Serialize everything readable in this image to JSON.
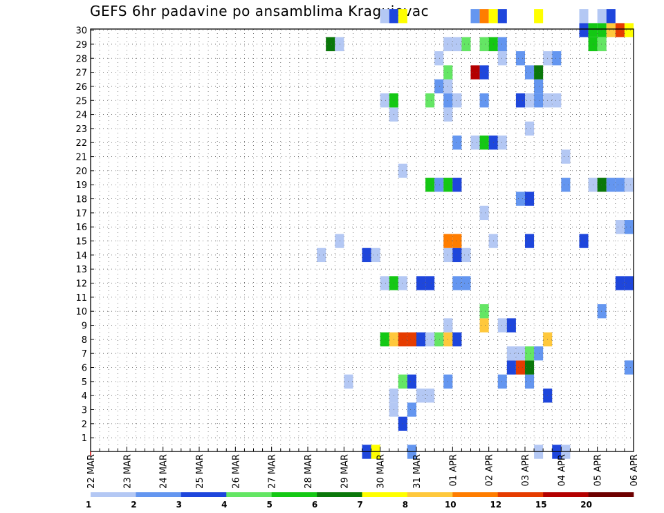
{
  "chart_data": {
    "type": "heatmap",
    "title": "GEFS 6hr padavine po ansamblima Kragujevac",
    "xlabel": "",
    "ylabel": "",
    "x_tick_labels": [
      "22 MAR",
      "23 MAR",
      "24 MAR",
      "25 MAR",
      "26 MAR",
      "27 MAR",
      "28 MAR",
      "29 MAR",
      "30 MAR",
      "31 MAR",
      "01 APR",
      "02 APR",
      "03 APR",
      "04 APR",
      "05 APR",
      "06 APR"
    ],
    "y_tick_labels": [
      "1",
      "2",
      "3",
      "4",
      "5",
      "6",
      "7",
      "8",
      "9",
      "10",
      "11",
      "12",
      "13",
      "14",
      "15",
      "16",
      "17",
      "18",
      "19",
      "20",
      "21",
      "22",
      "23",
      "24",
      "25",
      "26",
      "27",
      "28",
      "29",
      "30"
    ],
    "x_unit": "6hr steps from 22 MAR 00Z",
    "xlim": [
      0,
      60
    ],
    "ylim": [
      0,
      30
    ],
    "grid": true,
    "color_levels": [
      1,
      2,
      3,
      4,
      5,
      6,
      7,
      8,
      10,
      12,
      15,
      20
    ],
    "color_bins": [
      "#b4c8f4",
      "#6496f0",
      "#1e46dc",
      "#64e664",
      "#14c814",
      "#0a780a",
      "#ffff00",
      "#ffc83c",
      "#ff7d00",
      "#e63c00",
      "#b40000",
      "#6e0000"
    ],
    "cells": [
      {
        "y": 0,
        "x": 30,
        "c": 2
      },
      {
        "y": 0,
        "x": 31,
        "c": 6
      },
      {
        "y": 0,
        "x": 35,
        "c": 1
      },
      {
        "y": 0,
        "x": 49,
        "c": 0
      },
      {
        "y": 0,
        "x": 51,
        "c": 2
      },
      {
        "y": 0,
        "x": 52,
        "c": 0
      },
      {
        "y": 2,
        "x": 34,
        "c": 2
      },
      {
        "y": 3,
        "x": 33,
        "c": 0
      },
      {
        "y": 3,
        "x": 35,
        "c": 1
      },
      {
        "y": 4,
        "x": 33,
        "c": 0
      },
      {
        "y": 4,
        "x": 36,
        "c": 0
      },
      {
        "y": 4,
        "x": 37,
        "c": 0
      },
      {
        "y": 4,
        "x": 50,
        "c": 2
      },
      {
        "y": 5,
        "x": 28,
        "c": 0
      },
      {
        "y": 5,
        "x": 34,
        "c": 3
      },
      {
        "y": 5,
        "x": 35,
        "c": 2
      },
      {
        "y": 5,
        "x": 39,
        "c": 1
      },
      {
        "y": 5,
        "x": 45,
        "c": 1
      },
      {
        "y": 5,
        "x": 48,
        "c": 1
      },
      {
        "y": 6,
        "x": 46,
        "c": 2
      },
      {
        "y": 6,
        "x": 47,
        "c": 9
      },
      {
        "y": 6,
        "x": 48,
        "c": 5
      },
      {
        "y": 6,
        "x": 59,
        "c": 1
      },
      {
        "y": 7,
        "x": 46,
        "c": 0
      },
      {
        "y": 7,
        "x": 47,
        "c": 0
      },
      {
        "y": 7,
        "x": 48,
        "c": 3
      },
      {
        "y": 7,
        "x": 49,
        "c": 1
      },
      {
        "y": 8,
        "x": 32,
        "c": 4
      },
      {
        "y": 8,
        "x": 33,
        "c": 7
      },
      {
        "y": 8,
        "x": 34,
        "c": 9
      },
      {
        "y": 8,
        "x": 35,
        "c": 9
      },
      {
        "y": 8,
        "x": 36,
        "c": 2
      },
      {
        "y": 8,
        "x": 37,
        "c": 0
      },
      {
        "y": 8,
        "x": 38,
        "c": 3
      },
      {
        "y": 8,
        "x": 39,
        "c": 7
      },
      {
        "y": 8,
        "x": 40,
        "c": 2
      },
      {
        "y": 8,
        "x": 50,
        "c": 7
      },
      {
        "y": 9,
        "x": 39,
        "c": 0
      },
      {
        "y": 9,
        "x": 43,
        "c": 7
      },
      {
        "y": 9,
        "x": 45,
        "c": 0
      },
      {
        "y": 9,
        "x": 46,
        "c": 2
      },
      {
        "y": 10,
        "x": 43,
        "c": 3
      },
      {
        "y": 10,
        "x": 56,
        "c": 1
      },
      {
        "y": 12,
        "x": 32,
        "c": 0
      },
      {
        "y": 12,
        "x": 33,
        "c": 4
      },
      {
        "y": 12,
        "x": 34,
        "c": 0
      },
      {
        "y": 12,
        "x": 36,
        "c": 2
      },
      {
        "y": 12,
        "x": 37,
        "c": 2
      },
      {
        "y": 12,
        "x": 40,
        "c": 1
      },
      {
        "y": 12,
        "x": 41,
        "c": 1
      },
      {
        "y": 12,
        "x": 58,
        "c": 2
      },
      {
        "y": 12,
        "x": 59,
        "c": 2
      },
      {
        "y": 14,
        "x": 25,
        "c": 0
      },
      {
        "y": 14,
        "x": 30,
        "c": 2
      },
      {
        "y": 14,
        "x": 31,
        "c": 0
      },
      {
        "y": 14,
        "x": 39,
        "c": 0
      },
      {
        "y": 14,
        "x": 40,
        "c": 2
      },
      {
        "y": 14,
        "x": 41,
        "c": 0
      },
      {
        "y": 15,
        "x": 27,
        "c": 0
      },
      {
        "y": 15,
        "x": 39,
        "c": 8
      },
      {
        "y": 15,
        "x": 40,
        "c": 8
      },
      {
        "y": 15,
        "x": 44,
        "c": 0
      },
      {
        "y": 15,
        "x": 48,
        "c": 2
      },
      {
        "y": 15,
        "x": 54,
        "c": 2
      },
      {
        "y": 16,
        "x": 58,
        "c": 0
      },
      {
        "y": 16,
        "x": 59,
        "c": 1
      },
      {
        "y": 17,
        "x": 43,
        "c": 0
      },
      {
        "y": 18,
        "x": 47,
        "c": 1
      },
      {
        "y": 18,
        "x": 48,
        "c": 2
      },
      {
        "y": 19,
        "x": 37,
        "c": 4
      },
      {
        "y": 19,
        "x": 38,
        "c": 1
      },
      {
        "y": 19,
        "x": 39,
        "c": 4
      },
      {
        "y": 19,
        "x": 40,
        "c": 2
      },
      {
        "y": 19,
        "x": 52,
        "c": 1
      },
      {
        "y": 19,
        "x": 55,
        "c": 0
      },
      {
        "y": 19,
        "x": 56,
        "c": 5
      },
      {
        "y": 19,
        "x": 57,
        "c": 1
      },
      {
        "y": 19,
        "x": 58,
        "c": 1
      },
      {
        "y": 19,
        "x": 59,
        "c": 0
      },
      {
        "y": 20,
        "x": 34,
        "c": 0
      },
      {
        "y": 21,
        "x": 52,
        "c": 0
      },
      {
        "y": 22,
        "x": 40,
        "c": 1
      },
      {
        "y": 22,
        "x": 42,
        "c": 0
      },
      {
        "y": 22,
        "x": 43,
        "c": 4
      },
      {
        "y": 22,
        "x": 44,
        "c": 2
      },
      {
        "y": 22,
        "x": 45,
        "c": 0
      },
      {
        "y": 23,
        "x": 48,
        "c": 0
      },
      {
        "y": 24,
        "x": 33,
        "c": 0
      },
      {
        "y": 24,
        "x": 39,
        "c": 0
      },
      {
        "y": 25,
        "x": 32,
        "c": 0
      },
      {
        "y": 25,
        "x": 33,
        "c": 4
      },
      {
        "y": 25,
        "x": 37,
        "c": 3
      },
      {
        "y": 25,
        "x": 39,
        "c": 1
      },
      {
        "y": 25,
        "x": 40,
        "c": 0
      },
      {
        "y": 25,
        "x": 43,
        "c": 1
      },
      {
        "y": 25,
        "x": 47,
        "c": 2
      },
      {
        "y": 25,
        "x": 48,
        "c": 0
      },
      {
        "y": 25,
        "x": 49,
        "c": 1
      },
      {
        "y": 25,
        "x": 50,
        "c": 0
      },
      {
        "y": 25,
        "x": 51,
        "c": 0
      },
      {
        "y": 26,
        "x": 38,
        "c": 1
      },
      {
        "y": 26,
        "x": 39,
        "c": 0
      },
      {
        "y": 26,
        "x": 49,
        "c": 1
      },
      {
        "y": 27,
        "x": 39,
        "c": 3
      },
      {
        "y": 27,
        "x": 42,
        "c": 10
      },
      {
        "y": 27,
        "x": 43,
        "c": 2
      },
      {
        "y": 27,
        "x": 48,
        "c": 1
      },
      {
        "y": 27,
        "x": 49,
        "c": 5
      },
      {
        "y": 28,
        "x": 38,
        "c": 0
      },
      {
        "y": 28,
        "x": 45,
        "c": 0
      },
      {
        "y": 28,
        "x": 47,
        "c": 1
      },
      {
        "y": 28,
        "x": 50,
        "c": 0
      },
      {
        "y": 28,
        "x": 51,
        "c": 1
      },
      {
        "y": 29,
        "x": 26,
        "c": 5
      },
      {
        "y": 29,
        "x": 27,
        "c": 0
      },
      {
        "y": 29,
        "x": 39,
        "c": 0
      },
      {
        "y": 29,
        "x": 40,
        "c": 0
      },
      {
        "y": 29,
        "x": 41,
        "c": 3
      },
      {
        "y": 29,
        "x": 43,
        "c": 3
      },
      {
        "y": 29,
        "x": 44,
        "c": 4
      },
      {
        "y": 29,
        "x": 45,
        "c": 1
      },
      {
        "y": 29,
        "x": 55,
        "c": 4
      },
      {
        "y": 29,
        "x": 56,
        "c": 3
      },
      {
        "y": 29,
        "x": 60,
        "c": 2
      },
      {
        "y": 30,
        "x": 54,
        "c": 2
      },
      {
        "y": 30,
        "x": 55,
        "c": 4
      },
      {
        "y": 30,
        "x": 56,
        "c": 4
      },
      {
        "y": 30,
        "x": 57,
        "c": 7
      },
      {
        "y": 30,
        "x": 58,
        "c": 9
      },
      {
        "y": 30,
        "x": 59,
        "c": 6
      },
      {
        "y": 30,
        "x": 60,
        "c": 1
      },
      {
        "y": 31,
        "x": 32,
        "c": 0
      },
      {
        "y": 31,
        "x": 33,
        "c": 2
      },
      {
        "y": 31,
        "x": 34,
        "c": 6
      },
      {
        "y": 31,
        "x": 42,
        "c": 1
      },
      {
        "y": 31,
        "x": 43,
        "c": 8
      },
      {
        "y": 31,
        "x": 44,
        "c": 6
      },
      {
        "y": 31,
        "x": 45,
        "c": 2
      },
      {
        "y": 31,
        "x": 49,
        "c": 6
      },
      {
        "y": 31,
        "x": 54,
        "c": 0
      },
      {
        "y": 31,
        "x": 56,
        "c": 0
      },
      {
        "y": 31,
        "x": 57,
        "c": 2
      }
    ]
  }
}
